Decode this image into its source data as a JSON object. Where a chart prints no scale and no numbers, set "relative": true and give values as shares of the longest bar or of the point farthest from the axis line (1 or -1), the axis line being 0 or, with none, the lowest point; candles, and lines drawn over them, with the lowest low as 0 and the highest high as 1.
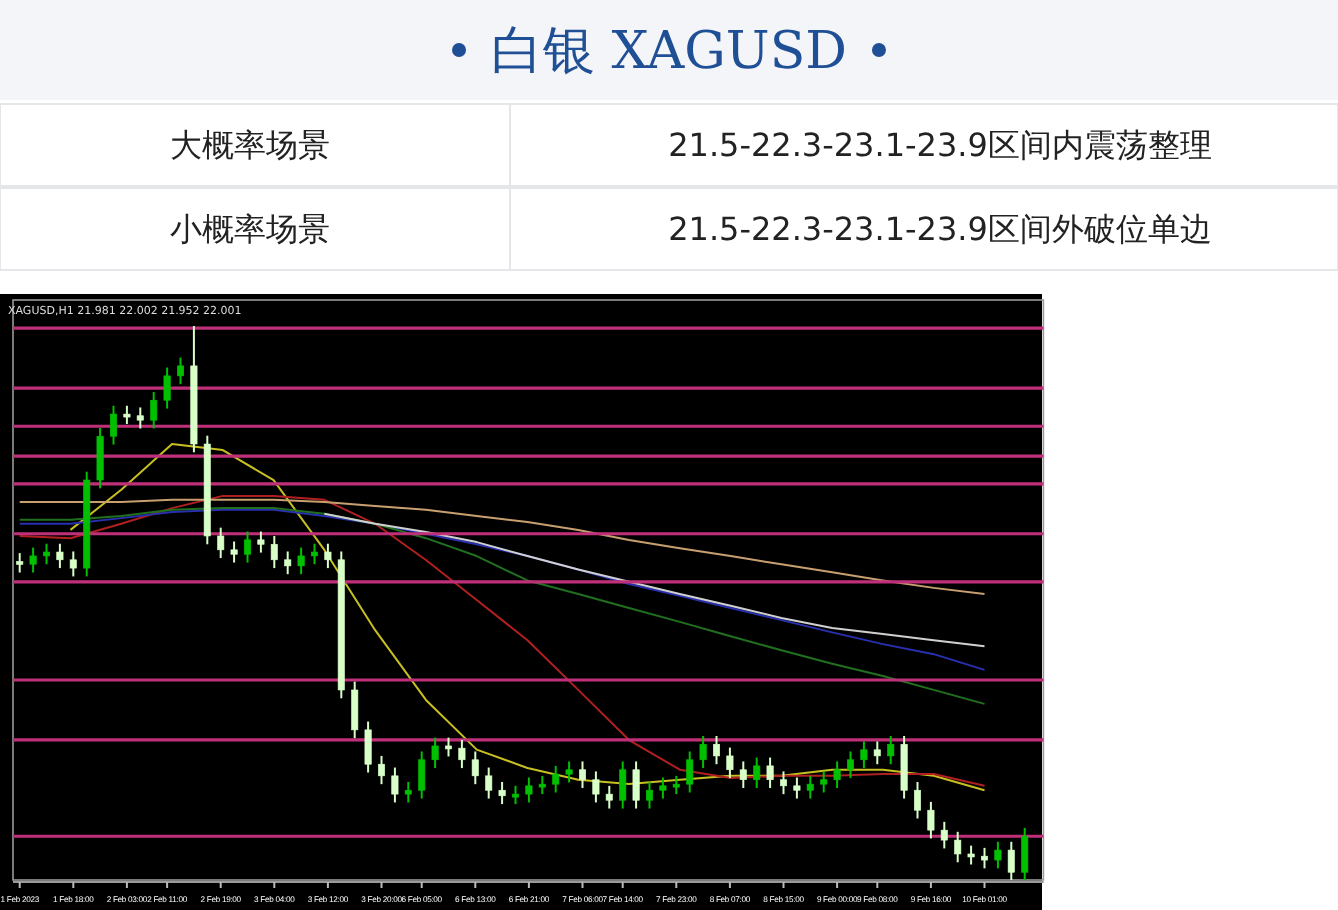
{
  "chart_data": [
    {
      "type": "other",
      "title": "白银  XAGUSD",
      "annotations": [
        "大概率场景",
        "21.5-22.3-23.1-23.9区间内震荡整理",
        "小概率场景",
        "21.5-22.3-23.1-23.9区间外破位单边"
      ]
    },
    {
      "type": "candlestick",
      "relative": true,
      "colors": [
        "#d8ffc8",
        "#00c000",
        "#00c000",
        "#d8ffc8",
        "#d8ffc8",
        "#00c000",
        "#00c000",
        "#00c000",
        "#d8ffc8",
        "#d8ffc8",
        "#00c000",
        "#00c000",
        "#00c000",
        "#d8ffc8",
        "#d8ffc8",
        "#d8ffc8",
        "#d8ffc8",
        "#00c000",
        "#d8ffc8",
        "#d8ffc8",
        "#d8ffc8",
        "#00c000",
        "#00c000",
        "#d8ffc8",
        "#d8ffc8",
        "#d8ffc8",
        "#d8ffc8",
        "#d8ffc8",
        "#d8ffc8",
        "#00c000",
        "#00c000",
        "#00c000",
        "#d8ffc8",
        "#d8ffc8",
        "#d8ffc8",
        "#d8ffc8",
        "#d8ffc8",
        "#00c000",
        "#00c000",
        "#00c000",
        "#00c000",
        "#00c000",
        "#d8ffc8",
        "#d8ffc8",
        "#d8ffc8",
        "#00c000",
        "#d8ffc8",
        "#00c000",
        "#00c000",
        "#00c000",
        "#00c000",
        "#00c000",
        "#d8ffc8",
        "#d8ffc8",
        "#d8ffc8",
        "#00c000",
        "#d8ffc8",
        "#d8ffc8",
        "#d8ffc8",
        "#00c000",
        "#00c000",
        "#00c000",
        "#00c000",
        "#00c000",
        "#d8ffc8",
        "#00c000",
        "#d8ffc8",
        "#d8ffc8",
        "#d8ffc8",
        "#d8ffc8",
        "#d8ffc8",
        "#d8ffc8",
        "#d8ffc8",
        "#00c000",
        "#d8ffc8",
        "#00c000"
      ],
      "annotations": [
        "XAGUSD,H1 21.981 22.002 21.952 22.001"
      ],
      "categories": [
        "1 Feb 2023",
        null,
        null,
        null,
        "1 Feb 18:00",
        null,
        null,
        null,
        "2 Feb 03:00",
        null,
        null,
        "2 Feb 11:00",
        null,
        null,
        null,
        "2 Feb 19:00",
        null,
        null,
        null,
        "3 Feb 04:00",
        null,
        null,
        null,
        "3 Feb 12:00",
        null,
        null,
        null,
        "3 Feb 20:00",
        null,
        null,
        "6 Feb 05:00",
        null,
        null,
        null,
        "6 Feb 13:00",
        null,
        null,
        null,
        "6 Feb 21:00",
        null,
        null,
        null,
        "7 Feb 06:00",
        null,
        null,
        "7 Feb 14:00",
        null,
        null,
        null,
        "7 Feb 23:00",
        null,
        null,
        null,
        "8 Feb 07:00",
        null,
        null,
        null,
        "8 Feb 15:00",
        null,
        null,
        null,
        "9 Feb 00:00",
        null,
        null,
        "9 Feb 08:00",
        null,
        null,
        null,
        "9 Feb 16:00",
        null,
        null,
        null,
        "10 Feb 01:00",
        null,
        null,
        null
      ],
      "ohlc": [
        [
          0.575,
          0.59,
          0.555,
          0.57
        ],
        [
          0.57,
          0.6,
          0.555,
          0.585
        ],
        [
          0.585,
          0.607,
          0.57,
          0.592
        ],
        [
          0.592,
          0.607,
          0.563,
          0.578
        ],
        [
          0.578,
          0.593,
          0.548,
          0.563
        ],
        [
          0.563,
          0.737,
          0.548,
          0.722
        ],
        [
          0.722,
          0.816,
          0.707,
          0.801
        ],
        [
          0.801,
          0.856,
          0.786,
          0.841
        ],
        [
          0.841,
          0.856,
          0.823,
          0.838
        ],
        [
          0.838,
          0.853,
          0.815,
          0.83
        ],
        [
          0.83,
          0.881,
          0.815,
          0.866
        ],
        [
          0.866,
          0.925,
          0.851,
          0.91
        ],
        [
          0.91,
          0.943,
          0.895,
          0.928
        ],
        [
          0.928,
          1.0,
          0.772,
          0.787
        ],
        [
          0.787,
          0.802,
          0.606,
          0.621
        ],
        [
          0.621,
          0.636,
          0.581,
          0.596
        ],
        [
          0.596,
          0.611,
          0.573,
          0.588
        ],
        [
          0.588,
          0.629,
          0.573,
          0.614
        ],
        [
          0.614,
          0.629,
          0.591,
          0.606
        ],
        [
          0.606,
          0.621,
          0.563,
          0.578
        ],
        [
          0.578,
          0.593,
          0.552,
          0.567
        ],
        [
          0.567,
          0.6,
          0.552,
          0.585
        ],
        [
          0.585,
          0.607,
          0.57,
          0.592
        ],
        [
          0.592,
          0.607,
          0.563,
          0.578
        ],
        [
          0.578,
          0.593,
          0.328,
          0.343
        ],
        [
          0.343,
          0.358,
          0.256,
          0.271
        ],
        [
          0.271,
          0.286,
          0.194,
          0.209
        ],
        [
          0.209,
          0.224,
          0.173,
          0.188
        ],
        [
          0.188,
          0.203,
          0.14,
          0.155
        ],
        [
          0.155,
          0.177,
          0.14,
          0.162
        ],
        [
          0.162,
          0.232,
          0.147,
          0.217
        ],
        [
          0.217,
          0.257,
          0.202,
          0.242
        ],
        [
          0.242,
          0.257,
          0.223,
          0.238
        ],
        [
          0.238,
          0.253,
          0.202,
          0.217
        ],
        [
          0.217,
          0.232,
          0.173,
          0.188
        ],
        [
          0.188,
          0.203,
          0.147,
          0.162
        ],
        [
          0.162,
          0.177,
          0.137,
          0.152
        ],
        [
          0.152,
          0.17,
          0.137,
          0.155
        ],
        [
          0.155,
          0.185,
          0.14,
          0.17
        ],
        [
          0.17,
          0.188,
          0.155,
          0.173
        ],
        [
          0.173,
          0.206,
          0.158,
          0.191
        ],
        [
          0.191,
          0.214,
          0.176,
          0.199
        ],
        [
          0.199,
          0.214,
          0.166,
          0.181
        ],
        [
          0.181,
          0.196,
          0.14,
          0.155
        ],
        [
          0.155,
          0.17,
          0.129,
          0.144
        ],
        [
          0.144,
          0.214,
          0.129,
          0.199
        ],
        [
          0.199,
          0.214,
          0.129,
          0.144
        ],
        [
          0.144,
          0.177,
          0.129,
          0.162
        ],
        [
          0.162,
          0.185,
          0.147,
          0.17
        ],
        [
          0.17,
          0.188,
          0.155,
          0.173
        ],
        [
          0.173,
          0.232,
          0.158,
          0.217
        ],
        [
          0.217,
          0.26,
          0.202,
          0.245
        ],
        [
          0.245,
          0.26,
          0.209,
          0.224
        ],
        [
          0.224,
          0.239,
          0.184,
          0.199
        ],
        [
          0.199,
          0.214,
          0.166,
          0.181
        ],
        [
          0.181,
          0.221,
          0.166,
          0.206
        ],
        [
          0.206,
          0.221,
          0.166,
          0.181
        ],
        [
          0.181,
          0.196,
          0.155,
          0.17
        ],
        [
          0.17,
          0.185,
          0.147,
          0.162
        ],
        [
          0.162,
          0.188,
          0.147,
          0.173
        ],
        [
          0.173,
          0.196,
          0.158,
          0.181
        ],
        [
          0.181,
          0.214,
          0.166,
          0.199
        ],
        [
          0.199,
          0.232,
          0.184,
          0.217
        ],
        [
          0.217,
          0.25,
          0.202,
          0.235
        ],
        [
          0.235,
          0.25,
          0.209,
          0.224
        ],
        [
          0.224,
          0.26,
          0.209,
          0.245
        ],
        [
          0.245,
          0.26,
          0.147,
          0.162
        ],
        [
          0.162,
          0.177,
          0.111,
          0.126
        ],
        [
          0.126,
          0.141,
          0.075,
          0.09
        ],
        [
          0.09,
          0.105,
          0.057,
          0.072
        ],
        [
          0.072,
          0.087,
          0.032,
          0.047
        ],
        [
          0.047,
          0.062,
          0.028,
          0.043
        ],
        [
          0.043,
          0.058,
          0.021,
          0.036
        ],
        [
          0.036,
          0.069,
          0.021,
          0.054
        ],
        [
          0.054,
          0.069,
          0.0,
          0.014
        ],
        [
          0.014,
          0.094,
          0.0,
          0.079
        ]
      ],
      "ref_lines": [
        {
          "axis": "y",
          "value": 0.996,
          "color": "#c0307a"
        },
        {
          "axis": "y",
          "value": 0.888,
          "color": "#c0307a"
        },
        {
          "axis": "y",
          "value": 0.819,
          "color": "#c0307a"
        },
        {
          "axis": "y",
          "value": 0.765,
          "color": "#c0307a"
        },
        {
          "axis": "y",
          "value": 0.715,
          "color": "#c0307a"
        },
        {
          "axis": "y",
          "value": 0.625,
          "color": "#c0307a"
        },
        {
          "axis": "y",
          "value": 0.538,
          "color": "#c0307a"
        },
        {
          "axis": "y",
          "value": 0.361,
          "color": "#c0307a"
        },
        {
          "axis": "y",
          "value": 0.253,
          "color": "#c0307a"
        },
        {
          "axis": "y",
          "value": 0.079,
          "color": "#c0307a"
        }
      ]
    },
    {
      "type": "line",
      "relative": true,
      "categories": [
        null,
        null,
        null,
        null,
        null,
        null,
        null,
        null,
        null,
        null,
        null,
        null,
        null,
        null,
        null,
        null,
        null,
        null,
        null,
        null
      ],
      "series": [
        {
          "color": "#c8c020",
          "values": [
            null,
            0.803,
            0.895,
            1.0,
            0.986,
            0.917,
            0.757,
            0.573,
            0.413,
            0.299,
            0.257,
            0.23,
            0.22,
            0.23,
            0.239,
            0.239,
            0.253,
            0.253,
            0.239,
            0.206
          ]
        },
        {
          "color": "#b02020",
          "values": [
            0.789,
            0.784,
            0.817,
            0.853,
            0.881,
            0.881,
            0.872,
            0.817,
            0.734,
            0.642,
            0.55,
            0.436,
            0.321,
            0.253,
            0.234,
            0.239,
            0.239,
            0.243,
            0.243,
            0.216
          ]
        },
        {
          "color": "#2830b0",
          "values": [
            0.817,
            0.817,
            0.83,
            0.844,
            0.849,
            0.849,
            0.835,
            0.817,
            0.794,
            0.77,
            0.743,
            0.712,
            0.679,
            0.652,
            0.624,
            0.596,
            0.568,
            0.541,
            0.518,
            0.482
          ]
        },
        {
          "color": "#207020",
          "values": [
            0.826,
            0.826,
            0.835,
            0.849,
            0.853,
            0.853,
            0.84,
            0.817,
            0.784,
            0.743,
            0.687,
            0.656,
            0.624,
            0.592,
            0.559,
            0.527,
            0.496,
            0.468,
            0.436,
            0.404
          ]
        },
        {
          "color": "#c8a070",
          "values": [
            0.867,
            0.867,
            0.867,
            0.872,
            0.872,
            0.872,
            0.867,
            0.858,
            0.849,
            0.835,
            0.821,
            0.803,
            0.78,
            0.761,
            0.743,
            0.724,
            0.706,
            0.687,
            0.67,
            0.656
          ]
        },
        {
          "color": "#d0d0d0",
          "values": [
            null,
            null,
            null,
            null,
            null,
            null,
            0.84,
            0.817,
            0.798,
            0.775,
            0.743,
            0.712,
            0.684,
            0.656,
            0.629,
            0.601,
            0.578,
            0.564,
            0.55,
            0.536
          ]
        }
      ]
    }
  ]
}
